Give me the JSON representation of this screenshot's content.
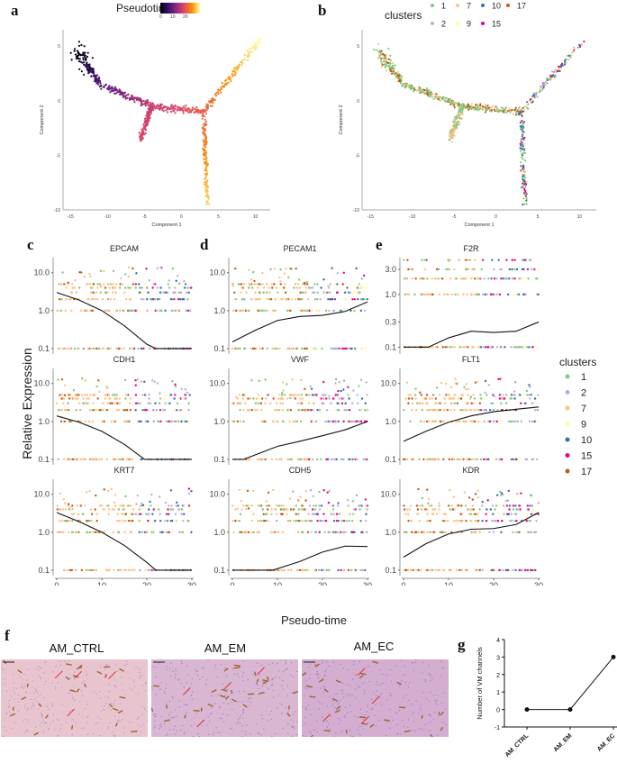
{
  "panels": {
    "a": {
      "letter": "a",
      "legend_title": "Pseudotime",
      "legend_ticks": [
        "0",
        "10",
        "20"
      ]
    },
    "b": {
      "letter": "b",
      "legend_title": "clusters"
    },
    "c": {
      "letter": "c"
    },
    "d": {
      "letter": "d"
    },
    "e": {
      "letter": "e"
    },
    "f": {
      "letter": "f",
      "images": [
        {
          "label": "AM_CTRL"
        },
        {
          "label": "AM_EM"
        },
        {
          "label": "AM_EC"
        }
      ]
    },
    "g": {
      "letter": "g"
    }
  },
  "clusters": [
    {
      "id": "1",
      "color": "#7fc97f"
    },
    {
      "id": "2",
      "color": "#beaed4"
    },
    {
      "id": "7",
      "color": "#fdc086"
    },
    {
      "id": "9",
      "color": "#ffff99"
    },
    {
      "id": "10",
      "color": "#386cb0"
    },
    {
      "id": "15",
      "color": "#f0027f"
    },
    {
      "id": "17",
      "color": "#bf5b17"
    }
  ],
  "shared_labels": {
    "y_expression": "Relative Expression",
    "x_pseudotime": "Pseudo-time",
    "side_legend_title": "clusters"
  },
  "chart_data": [
    {
      "id": "a",
      "type": "scatter",
      "title": "",
      "xlabel": "Component 1",
      "ylabel": "Component 2",
      "xticks": [
        -15,
        -10,
        -5,
        0,
        5,
        10
      ],
      "yticks": [
        5,
        0,
        -5,
        -10
      ],
      "xlim": [
        -16,
        12
      ],
      "ylim": [
        -10,
        6.5
      ],
      "color_by": "Pseudotime",
      "color_range": [
        0,
        30
      ],
      "branches": [
        {
          "name": "root",
          "path": [
            [
              -14,
              4.5
            ],
            [
              -11,
              1.5
            ],
            [
              -4,
              -0.5
            ],
            [
              3,
              -1
            ]
          ],
          "pseudotime": [
            0,
            8,
            16,
            20
          ]
        },
        {
          "name": "side",
          "path": [
            [
              -4,
              -0.5
            ],
            [
              -5.5,
              -3.5
            ]
          ],
          "pseudotime": [
            16,
            18
          ]
        },
        {
          "name": "upper",
          "path": [
            [
              3,
              -1
            ],
            [
              10.5,
              5.5
            ]
          ],
          "pseudotime": [
            20,
            30
          ]
        },
        {
          "name": "lower",
          "path": [
            [
              3,
              -1
            ],
            [
              3.5,
              -9.5
            ]
          ],
          "pseudotime": [
            20,
            28
          ]
        }
      ]
    },
    {
      "id": "b",
      "type": "scatter",
      "title": "",
      "xlabel": "Component 1",
      "ylabel": "Component 2",
      "xticks": [
        -15,
        -10,
        -5,
        0,
        5,
        10
      ],
      "yticks": [
        5,
        0,
        -5,
        -10
      ],
      "xlim": [
        -16,
        12
      ],
      "ylim": [
        -10,
        6.5
      ],
      "legend": [
        "1",
        "7",
        "10",
        "17",
        "2",
        "9",
        "15"
      ],
      "legend_position": "top"
    },
    {
      "id": "c1",
      "type": "scatter",
      "title": "EPCAM",
      "xlim": [
        0,
        30
      ],
      "yscale": "log",
      "yticks": [
        "0.1",
        "1.0",
        "10.0"
      ],
      "trend": [
        [
          0,
          3
        ],
        [
          5,
          1.9
        ],
        [
          10,
          1.0
        ],
        [
          15,
          0.4
        ],
        [
          20,
          0.13
        ],
        [
          22,
          0.1
        ],
        [
          30,
          0.1
        ]
      ]
    },
    {
      "id": "c2",
      "type": "scatter",
      "title": "CDH1",
      "xlim": [
        0,
        30
      ],
      "yscale": "log",
      "yticks": [
        "0.1",
        "1.0",
        "10.0"
      ],
      "trend": [
        [
          0,
          1.4
        ],
        [
          5,
          0.95
        ],
        [
          10,
          0.55
        ],
        [
          15,
          0.25
        ],
        [
          19.5,
          0.1
        ],
        [
          30,
          0.1
        ]
      ]
    },
    {
      "id": "c3",
      "type": "scatter",
      "title": "KRT7",
      "xlim": [
        0,
        30
      ],
      "yscale": "log",
      "yticks": [
        "0.1",
        "1.0",
        "10.0"
      ],
      "xticks": [
        "0",
        "10",
        "20",
        "30"
      ],
      "trend": [
        [
          0,
          3.3
        ],
        [
          5,
          1.9
        ],
        [
          10,
          1.0
        ],
        [
          15,
          0.45
        ],
        [
          20,
          0.16
        ],
        [
          22,
          0.1
        ],
        [
          30,
          0.1
        ]
      ]
    },
    {
      "id": "d1",
      "type": "scatter",
      "title": "PECAM1",
      "xlim": [
        0,
        30
      ],
      "yscale": "log",
      "yticks": [
        "0.1",
        "1.0",
        "10.0"
      ],
      "trend": [
        [
          0,
          0.15
        ],
        [
          5,
          0.3
        ],
        [
          10,
          0.55
        ],
        [
          15,
          0.7
        ],
        [
          20,
          0.75
        ],
        [
          25,
          0.95
        ],
        [
          30,
          1.7
        ]
      ]
    },
    {
      "id": "d2",
      "type": "scatter",
      "title": "VWF",
      "xlim": [
        0,
        30
      ],
      "yscale": "log",
      "yticks": [
        "0.1",
        "1.0",
        "10.0"
      ],
      "trend": [
        [
          0,
          0.1
        ],
        [
          2.5,
          0.1
        ],
        [
          10,
          0.22
        ],
        [
          15,
          0.3
        ],
        [
          20,
          0.42
        ],
        [
          25,
          0.6
        ],
        [
          30,
          1.0
        ]
      ]
    },
    {
      "id": "d3",
      "type": "scatter",
      "title": "CDH5",
      "xlim": [
        0,
        30
      ],
      "yscale": "log",
      "yticks": [
        "0.1",
        "1.0",
        "10.0"
      ],
      "xticks": [
        "0",
        "10",
        "20",
        "30"
      ],
      "trend": [
        [
          0,
          0.1
        ],
        [
          9,
          0.1
        ],
        [
          15,
          0.17
        ],
        [
          20,
          0.3
        ],
        [
          25,
          0.43
        ],
        [
          30,
          0.42
        ]
      ]
    },
    {
      "id": "e1",
      "type": "scatter",
      "title": "F2R",
      "xlim": [
        0,
        30
      ],
      "yscale": "log",
      "yticks": [
        "0.1",
        "0.3",
        "1.0",
        "3.0"
      ],
      "trend": [
        [
          0,
          0.1
        ],
        [
          5.5,
          0.1
        ],
        [
          10,
          0.15
        ],
        [
          15,
          0.2
        ],
        [
          20,
          0.19
        ],
        [
          25,
          0.2
        ],
        [
          30,
          0.3
        ]
      ]
    },
    {
      "id": "e2",
      "type": "scatter",
      "title": "FLT1",
      "xlim": [
        0,
        30
      ],
      "yscale": "log",
      "yticks": [
        "0.1",
        "1.0",
        "10.0"
      ],
      "trend": [
        [
          0,
          0.3
        ],
        [
          5,
          0.55
        ],
        [
          10,
          0.95
        ],
        [
          15,
          1.4
        ],
        [
          20,
          1.8
        ],
        [
          25,
          2.1
        ],
        [
          30,
          2.4
        ]
      ]
    },
    {
      "id": "e3",
      "type": "scatter",
      "title": "KDR",
      "xlim": [
        0,
        30
      ],
      "yscale": "log",
      "yticks": [
        "0.1",
        "1.0",
        "10.0"
      ],
      "xticks": [
        "0",
        "10",
        "20",
        "30"
      ],
      "trend": [
        [
          0,
          0.22
        ],
        [
          5,
          0.5
        ],
        [
          10,
          0.9
        ],
        [
          15,
          1.2
        ],
        [
          20,
          1.25
        ],
        [
          25,
          1.6
        ],
        [
          30,
          3.3
        ]
      ]
    },
    {
      "id": "g",
      "type": "line",
      "title": "",
      "xlabel": "",
      "ylabel": "Number of VM channels",
      "categories": [
        "AM_CTRL",
        "AM_EM",
        "AM_EC"
      ],
      "values": [
        0,
        0,
        3
      ],
      "ylim": [
        -1,
        4
      ],
      "yticks": [
        "-1",
        "0",
        "1",
        "2",
        "3",
        "4"
      ]
    }
  ]
}
